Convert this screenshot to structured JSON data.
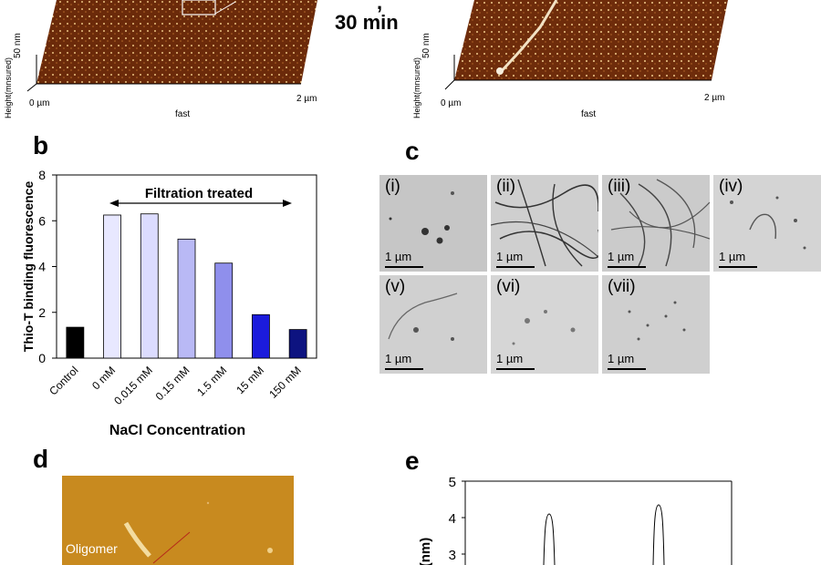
{
  "panel_a": {
    "condition_suffix": ",",
    "time": "30 min",
    "left_plot": {
      "x_start": "0 µm",
      "x_end": "2 µm",
      "x_axis": "fast",
      "z_scale": "50 nm",
      "z_label": "Height(mnsured)"
    },
    "right_plot": {
      "x_start": "0 µm",
      "x_end": "2 µm",
      "x_axis": "fast",
      "z_scale": "50 nm",
      "z_label": "Height(mnsured)"
    }
  },
  "panel_b": {
    "letter": "b",
    "annotation": "Filtration treated",
    "chart_data": {
      "type": "bar",
      "categories": [
        "Control",
        "0 mM",
        "0.015 mM",
        "0.15 mM",
        "1.5 mM",
        "15 mM",
        "150 mM"
      ],
      "values": [
        1.35,
        6.25,
        6.3,
        5.2,
        4.15,
        1.9,
        1.25
      ],
      "colors": [
        "#000000",
        "#e8e8ff",
        "#dcdcff",
        "#b9b9f5",
        "#8f8fec",
        "#1b1bdc",
        "#0d1380"
      ],
      "ylabel": "Thio-T binding fluorescence",
      "xlabel": "NaCl Concentration",
      "ylim": [
        0,
        8
      ],
      "yticks": [
        0,
        2,
        4,
        6,
        8
      ]
    }
  },
  "panel_c": {
    "letter": "c",
    "images": [
      {
        "label": "(i)",
        "scale": "1 µm"
      },
      {
        "label": "(ii)",
        "scale": "1 µm"
      },
      {
        "label": "(iii)",
        "scale": "1 µm"
      },
      {
        "label": "(iv)",
        "scale": "1 µm"
      },
      {
        "label": "(v)",
        "scale": "1 µm"
      },
      {
        "label": "(vi)",
        "scale": "1 µm"
      },
      {
        "label": "(vii)",
        "scale": "1 µm"
      }
    ]
  },
  "panel_d": {
    "letter": "d",
    "annotation": "Oligomer"
  },
  "panel_e": {
    "letter": "e",
    "chart_data": {
      "type": "line",
      "ylabel": "(nm)",
      "ylim": [
        0,
        5
      ],
      "yticks": [
        3,
        4,
        5
      ],
      "series": [
        {
          "peaks": [
            4.1,
            4.35
          ]
        }
      ]
    }
  },
  "colors": {
    "afm_dark": "#4a1a06",
    "afm_mid": "#8a3c10",
    "afm_light": "#d8a060",
    "afm_d_bg": "#c98a1e"
  }
}
